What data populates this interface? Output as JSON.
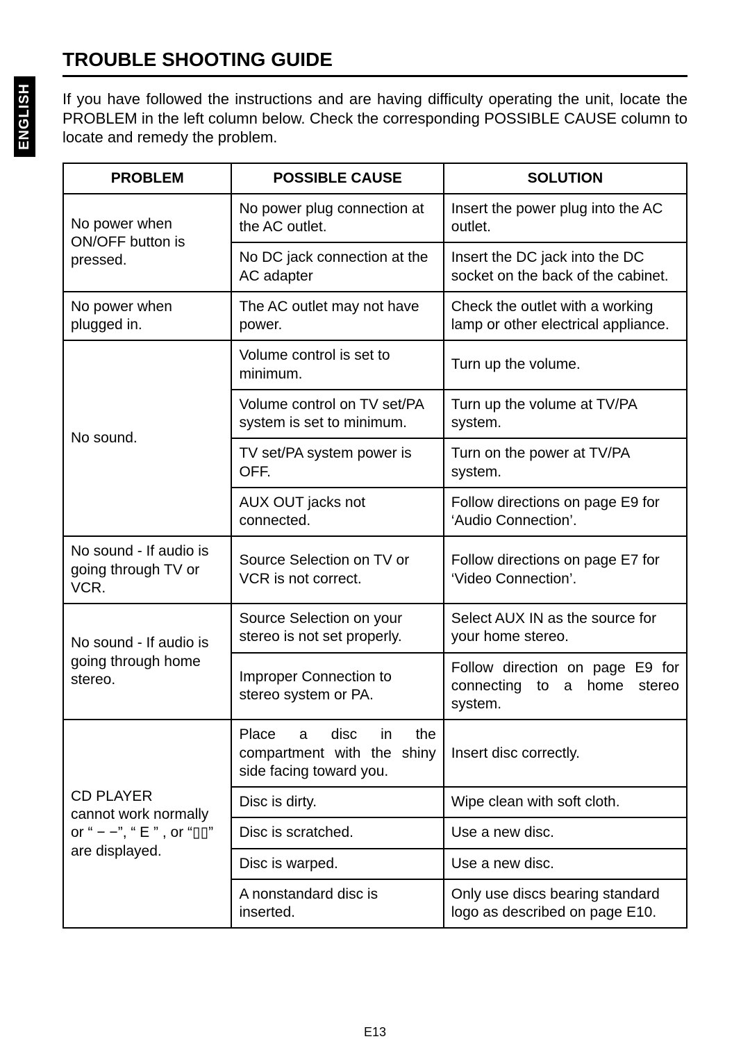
{
  "lang_tab": "ENGLISH",
  "title": "TROUBLE SHOOTING GUIDE",
  "intro": "If you have followed the instructions and are having difficulty operating the unit, locate the PROBLEM in the left column below. Check the corresponding POSSIBLE CAUSE column to locate and remedy the problem.",
  "headers": {
    "problem": "PROBLEM",
    "cause": "POSSIBLE CAUSE",
    "solution": "SOLUTION"
  },
  "rows": {
    "r1_problem": "No power when ON/OFF button is pressed.",
    "r1a_cause": "No power plug connection at the AC outlet.",
    "r1a_solution": "Insert the power plug into the AC outlet.",
    "r1b_cause": "No DC jack connection at the AC adapter",
    "r1b_solution": "Insert the DC jack into the DC socket on the back of the cabinet.",
    "r2_problem": "No power when plugged in.",
    "r2_cause": "The AC outlet may not have power.",
    "r2_solution": "Check the outlet with a working lamp or other electrical appliance.",
    "r3_problem": "No sound.",
    "r3a_cause": "Volume control is set to minimum.",
    "r3a_solution": "Turn up the volume.",
    "r3b_cause": "Volume control on TV set/PA system is set to minimum.",
    "r3b_solution": "Turn up the volume at TV/PA system.",
    "r3c_cause": "TV set/PA system power is OFF.",
    "r3c_solution": "Turn on the power at TV/PA system.",
    "r3d_cause": "AUX OUT jacks not connected.",
    "r3d_solution": "Follow directions on page E9 for ‘Audio Connection’.",
    "r4_problem": "No sound - If audio is going through TV or VCR.",
    "r4_cause": "Source Selection on TV or VCR is not correct.",
    "r4_solution": "Follow directions on page E7 for ‘Video Connection’.",
    "r5_problem": "No sound - If audio is going through home stereo.",
    "r5a_cause": "Source Selection on your stereo is not set properly.",
    "r5a_solution": "Select AUX IN as the source for your home stereo.",
    "r5b_cause": "Improper Connection to stereo system or PA.",
    "r5b_solution": "Follow direction on page E9 for connecting to a home stereo system.",
    "r6_problem": "CD PLAYER\ncannot work normally or “ − −”, “ E ” , or “▯▯” are displayed.",
    "r6a_cause": "Place a disc in the compartment with the shiny side facing toward you.",
    "r6a_solution": "Insert disc correctly.",
    "r6b_cause": "Disc is dirty.",
    "r6b_solution": "Wipe clean with soft cloth.",
    "r6c_cause": "Disc is scratched.",
    "r6c_solution": "Use a new disc.",
    "r6d_cause": "Disc is warped.",
    "r6d_solution": "Use a new disc.",
    "r6e_cause": "A nonstandard disc is inserted.",
    "r6e_solution": "Only use discs bearing standard logo as described on page E10."
  },
  "page_number": "E13"
}
